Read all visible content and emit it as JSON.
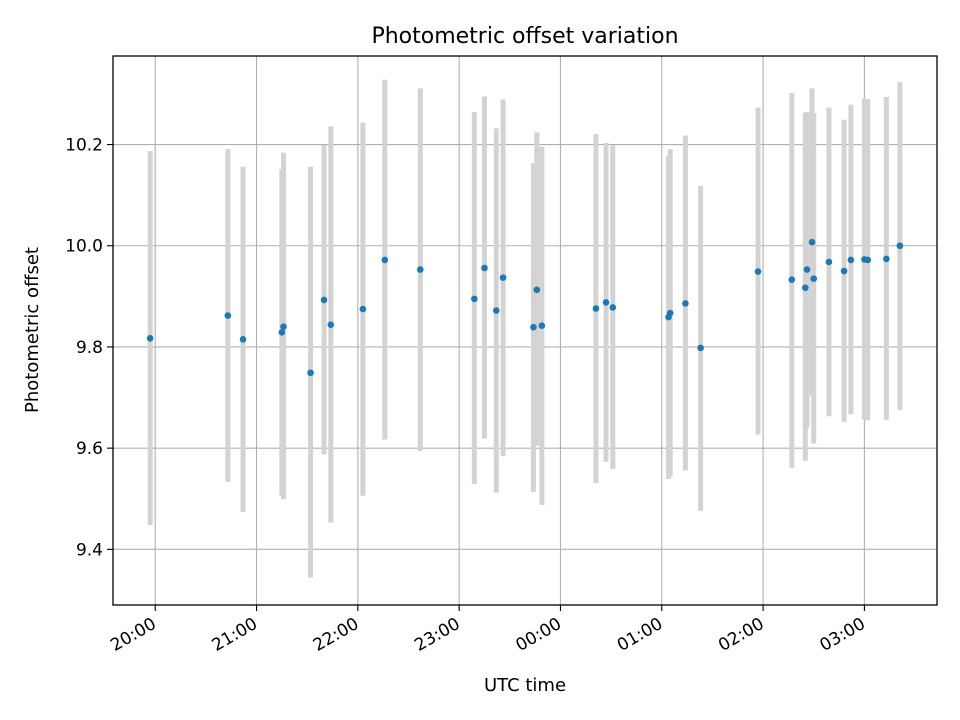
{
  "chart_data": {
    "type": "scatter",
    "title": "Photometric offset variation",
    "xlabel": "UTC time",
    "ylabel": "Photometric offset",
    "x_tick_labels": [
      "20:00",
      "21:00",
      "22:00",
      "23:00",
      "00:00",
      "01:00",
      "02:00",
      "03:00"
    ],
    "x_tick_times": [
      "20:00",
      "21:00",
      "22:00",
      "23:00",
      "24:00",
      "25:00",
      "26:00",
      "27:00"
    ],
    "x_range": [
      "19:35",
      "27:43"
    ],
    "y_ticks": [
      9.4,
      9.6,
      9.8,
      10.0,
      10.2
    ],
    "y_tick_labels": [
      "9.4",
      "9.6",
      "9.8",
      "10.0",
      "10.2"
    ],
    "ylim": [
      9.29,
      10.375
    ],
    "grid": true,
    "colors": {
      "point": "#1f77b4",
      "errorbar": "#d3d3d3",
      "grid": "#b0b0b0"
    },
    "points": [
      {
        "time": "19:57",
        "y": 9.817,
        "ylo": 9.448,
        "yhi": 10.187
      },
      {
        "time": "20:43",
        "y": 9.862,
        "ylo": 9.533,
        "yhi": 10.191
      },
      {
        "time": "20:52",
        "y": 9.815,
        "ylo": 9.474,
        "yhi": 10.156
      },
      {
        "time": "21:15",
        "y": 9.829,
        "ylo": 9.506,
        "yhi": 10.151
      },
      {
        "time": "21:16",
        "y": 9.84,
        "ylo": 9.499,
        "yhi": 10.184
      },
      {
        "time": "21:32",
        "y": 9.749,
        "ylo": 9.344,
        "yhi": 10.156
      },
      {
        "time": "21:40",
        "y": 9.893,
        "ylo": 9.588,
        "yhi": 10.199
      },
      {
        "time": "21:44",
        "y": 9.844,
        "ylo": 9.453,
        "yhi": 10.236
      },
      {
        "time": "22:03",
        "y": 9.875,
        "ylo": 9.506,
        "yhi": 10.243
      },
      {
        "time": "22:16",
        "y": 9.972,
        "ylo": 9.617,
        "yhi": 10.328
      },
      {
        "time": "22:37",
        "y": 9.953,
        "ylo": 9.594,
        "yhi": 10.311
      },
      {
        "time": "23:09",
        "y": 9.895,
        "ylo": 9.529,
        "yhi": 10.264
      },
      {
        "time": "23:15",
        "y": 9.956,
        "ylo": 9.619,
        "yhi": 10.295
      },
      {
        "time": "23:22",
        "y": 9.872,
        "ylo": 9.512,
        "yhi": 10.232
      },
      {
        "time": "23:26",
        "y": 9.937,
        "ylo": 9.584,
        "yhi": 10.289
      },
      {
        "time": "23:44",
        "y": 9.839,
        "ylo": 9.513,
        "yhi": 10.163
      },
      {
        "time": "23:46",
        "y": 9.913,
        "ylo": 9.605,
        "yhi": 10.224
      },
      {
        "time": "23:49",
        "y": 9.842,
        "ylo": 9.488,
        "yhi": 10.196
      },
      {
        "time": "24:21",
        "y": 9.876,
        "ylo": 9.531,
        "yhi": 10.221
      },
      {
        "time": "24:27",
        "y": 9.888,
        "ylo": 9.573,
        "yhi": 10.203
      },
      {
        "time": "24:31",
        "y": 9.878,
        "ylo": 9.559,
        "yhi": 10.198
      },
      {
        "time": "25:04",
        "y": 9.859,
        "ylo": 9.539,
        "yhi": 10.178
      },
      {
        "time": "25:05",
        "y": 9.867,
        "ylo": 9.544,
        "yhi": 10.191
      },
      {
        "time": "25:14",
        "y": 9.886,
        "ylo": 9.556,
        "yhi": 10.218
      },
      {
        "time": "25:23",
        "y": 9.798,
        "ylo": 9.476,
        "yhi": 10.118
      },
      {
        "time": "25:57",
        "y": 9.949,
        "ylo": 9.627,
        "yhi": 10.273
      },
      {
        "time": "26:17",
        "y": 9.933,
        "ylo": 9.561,
        "yhi": 10.302
      },
      {
        "time": "26:25",
        "y": 9.917,
        "ylo": 9.575,
        "yhi": 10.263
      },
      {
        "time": "26:26",
        "y": 9.953,
        "ylo": 9.641,
        "yhi": 10.264
      },
      {
        "time": "26:29",
        "y": 10.007,
        "ylo": 9.704,
        "yhi": 10.311
      },
      {
        "time": "26:30",
        "y": 9.935,
        "ylo": 9.609,
        "yhi": 10.262
      },
      {
        "time": "26:39",
        "y": 9.968,
        "ylo": 9.663,
        "yhi": 10.273
      },
      {
        "time": "26:48",
        "y": 9.95,
        "ylo": 9.652,
        "yhi": 10.249
      },
      {
        "time": "26:52",
        "y": 9.972,
        "ylo": 9.667,
        "yhi": 10.279
      },
      {
        "time": "27:00",
        "y": 9.973,
        "ylo": 9.656,
        "yhi": 10.291
      },
      {
        "time": "27:02",
        "y": 9.972,
        "ylo": 9.655,
        "yhi": 10.29
      },
      {
        "time": "27:13",
        "y": 9.974,
        "ylo": 9.656,
        "yhi": 10.294
      },
      {
        "time": "27:21",
        "y": 10.0,
        "ylo": 9.675,
        "yhi": 10.323
      }
    ]
  }
}
